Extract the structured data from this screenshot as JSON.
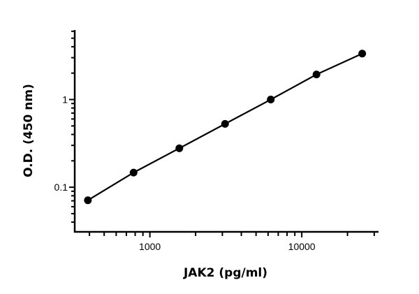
{
  "chart_data": {
    "type": "line",
    "title": "",
    "xlabel": "JAK2 (pg/ml)",
    "ylabel": "O.D. (450 nm)",
    "xscale": "log",
    "yscale": "log",
    "xlim": [
      320,
      32000
    ],
    "ylim": [
      0.031,
      6.2
    ],
    "x_ticks": [
      {
        "value": 1000,
        "label": "1000"
      },
      {
        "value": 10000,
        "label": "10000"
      }
    ],
    "y_ticks": [
      {
        "value": 0.1,
        "label": "0.1"
      },
      {
        "value": 1,
        "label": "1"
      }
    ],
    "grid": false,
    "legend": "none",
    "series": [
      {
        "color": "#000000",
        "marker": "circle",
        "x": [
          390.6,
          781.25,
          1562.5,
          3125,
          6250,
          12500,
          25000
        ],
        "y": [
          0.071,
          0.147,
          0.278,
          0.528,
          1.0,
          1.93,
          3.34
        ]
      }
    ]
  }
}
